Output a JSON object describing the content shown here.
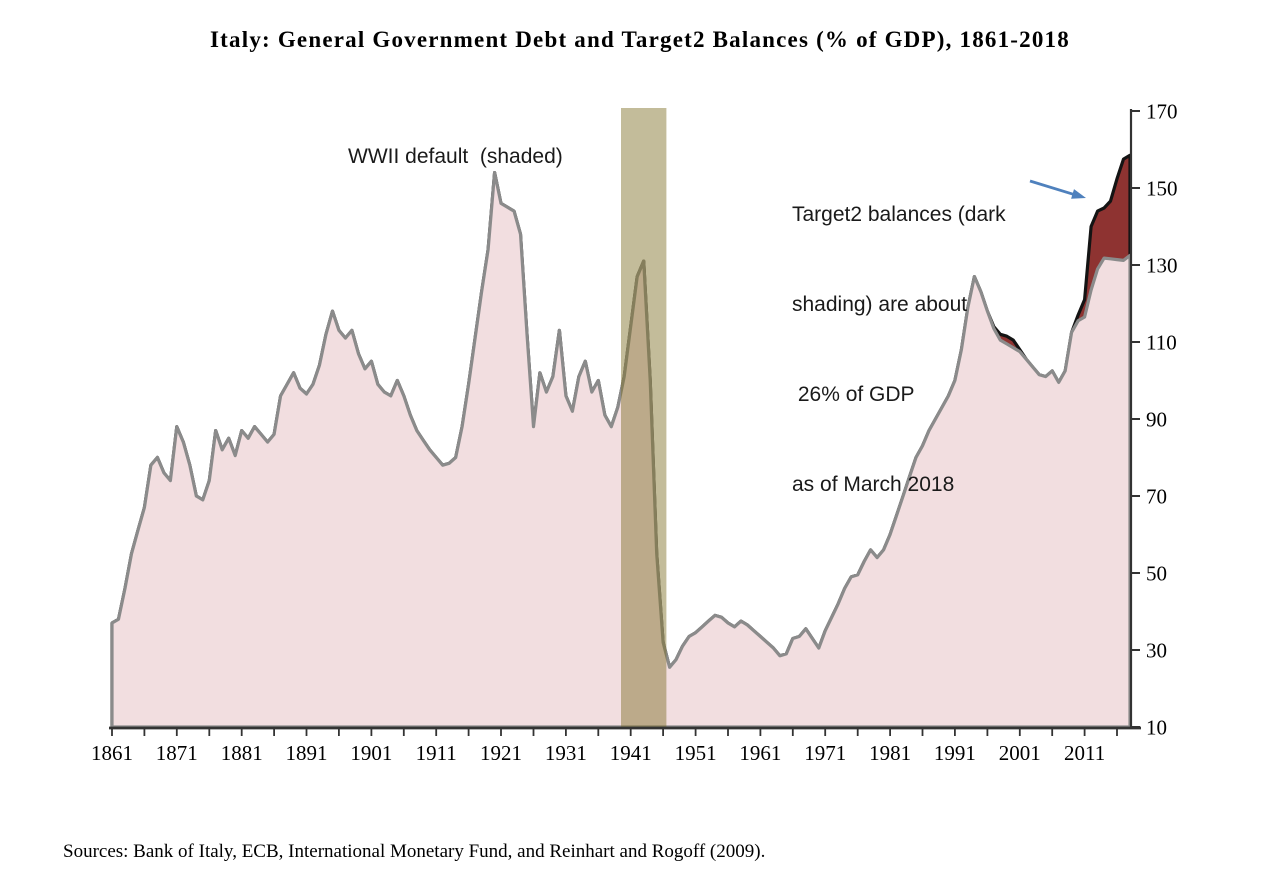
{
  "title": "Italy: General Government Debt and Target2 Balances (% of GDP), 1861-2018",
  "source_note": "Sources: Bank of Italy, ECB, International Monetary Fund, and Reinhart and Rogoff (2009).",
  "annotations": {
    "wwii_label": "WWII default  (shaded)",
    "target2_lines": [
      "Target2 balances (dark",
      "shading) are about",
      " 26% of GDP",
      "as of March 2018"
    ]
  },
  "colors": {
    "debt_fill": "#f2dee0",
    "debt_line": "#8b8b8b",
    "target2_fill": "#8e3331",
    "target2_line": "#141414",
    "band_fill": "rgba(128,113,40,0.47)",
    "arrow": "#4f81bd",
    "axis": "#333333",
    "text": "#000000"
  },
  "chart_data": {
    "type": "area",
    "title": "Italy: General Government Debt and Target2 Balances (% of GDP), 1861-2018",
    "xlabel": "",
    "ylabel": "% of GDP",
    "y_axis": {
      "min": 10,
      "max": 170,
      "ticks": [
        10,
        30,
        50,
        70,
        90,
        110,
        130,
        150,
        170
      ],
      "side": "right",
      "grid": false
    },
    "x_axis": {
      "start_year": 1861,
      "end_year": 2018,
      "tick_labels": [
        1861,
        1871,
        1881,
        1891,
        1901,
        1911,
        1921,
        1931,
        1941,
        1951,
        1961,
        1971,
        1981,
        1991,
        2001,
        2011
      ],
      "minor_tick_step": 5
    },
    "shaded_band": {
      "label": "WWII default",
      "from_year": 1939.5,
      "to_year": 1946.5
    },
    "legend_position": "none",
    "note": "Dark shaded area = general government debt plus Target2 balances; Target2 balances are about 26% of GDP as of March 2018",
    "series": [
      {
        "name": "General government debt (% of GDP)",
        "start_year": 1861,
        "values": [
          37,
          38,
          46,
          55,
          61,
          67,
          78,
          80,
          76,
          74,
          88,
          84,
          78,
          70,
          69,
          74,
          87,
          82,
          85,
          80.5,
          87,
          85,
          88,
          86,
          84,
          86,
          96,
          99,
          102,
          98,
          96.5,
          99,
          104,
          112,
          118,
          113,
          111,
          113,
          107,
          103,
          105,
          99,
          97,
          96,
          100,
          96,
          91,
          87,
          84.5,
          82,
          80,
          78,
          78.5,
          80,
          88,
          99,
          111,
          123,
          134,
          154,
          146,
          145,
          144,
          138,
          112,
          88,
          102,
          97,
          101,
          113,
          96,
          92,
          101,
          105,
          97,
          100,
          91,
          88,
          93,
          101,
          114,
          127,
          131,
          100,
          55,
          32,
          25.5,
          27.5,
          31,
          33.5,
          34.5,
          36,
          37.5,
          39,
          38.5,
          37,
          36,
          37.5,
          36.5,
          35,
          33.5,
          32,
          30.5,
          28.5,
          29,
          33,
          33.5,
          35.5,
          33,
          30.5,
          35,
          38.5,
          42,
          46,
          49,
          49.5,
          53,
          56,
          54,
          56,
          60,
          65,
          70,
          75,
          80,
          83,
          87,
          90,
          93,
          96,
          100,
          108,
          119,
          127,
          123,
          118,
          113.5,
          110.5,
          109.5,
          108.5,
          107.5,
          105.5,
          103.5,
          101.5,
          101,
          102.5,
          99.5,
          102.5,
          112.5,
          115.5,
          116.5,
          123.5,
          129,
          131.8,
          131.6,
          131.4,
          131.2,
          132.5
        ]
      },
      {
        "name": "Target2 balances stacked on top of debt (% of GDP)",
        "start_year": 1997,
        "values": [
          0.5,
          1.5,
          2,
          2,
          0.5,
          0,
          0,
          0,
          0,
          0,
          0,
          0,
          0,
          1.5,
          4.5,
          16.5,
          15,
          13,
          15,
          21,
          26.3,
          26
        ]
      }
    ]
  }
}
